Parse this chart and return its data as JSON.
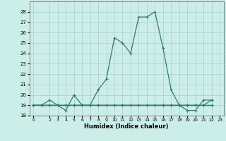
{
  "xlabel": "Humidex (Indice chaleur)",
  "line_color": "#2E7D6E",
  "bg_color": "#cceee8",
  "grid_color": "#aacccc",
  "ylim": [
    18,
    29
  ],
  "xlim": [
    -0.5,
    23.5
  ],
  "yticks": [
    18,
    19,
    20,
    21,
    22,
    23,
    24,
    25,
    26,
    27,
    28
  ],
  "xticks": [
    0,
    2,
    3,
    4,
    5,
    6,
    7,
    8,
    9,
    10,
    11,
    12,
    13,
    14,
    15,
    16,
    17,
    18,
    19,
    20,
    21,
    22,
    23
  ],
  "series": [
    [
      19,
      19,
      19.5,
      19,
      18.5,
      20,
      19,
      19,
      20.5,
      21.5,
      25.5,
      25,
      24,
      27.5,
      27.5,
      28,
      24.5,
      20.5,
      19,
      18.5,
      18.5,
      19.5,
      19.5
    ],
    [
      19,
      19,
      19,
      19,
      19,
      19,
      19,
      19,
      19,
      19,
      19,
      19,
      19,
      19,
      19,
      19,
      19,
      19,
      19,
      19,
      19,
      19,
      19.5
    ],
    [
      19,
      19,
      19,
      19,
      19,
      19,
      19,
      19,
      19,
      19,
      19,
      19,
      19,
      19,
      19,
      19,
      19,
      19,
      19,
      19,
      19,
      19,
      19
    ],
    [
      19,
      19,
      19,
      19,
      19,
      19,
      19,
      19,
      19,
      19,
      19,
      19,
      19,
      19,
      19,
      19,
      19,
      19,
      19,
      19,
      19,
      19,
      19
    ]
  ]
}
